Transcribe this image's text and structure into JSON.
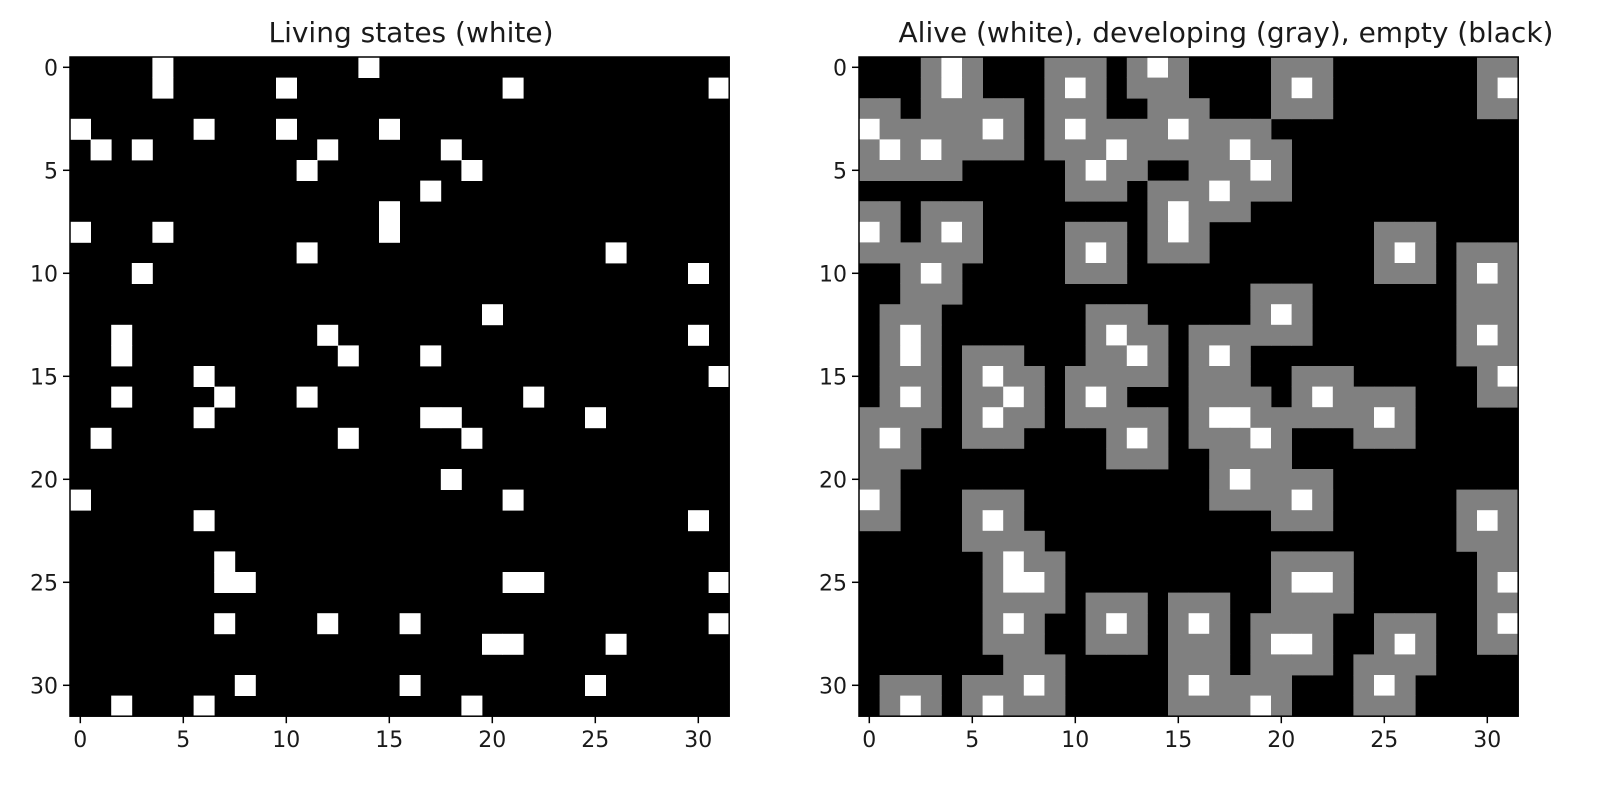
{
  "chart_data": [
    {
      "type": "heatmap",
      "title": "Living states (white)",
      "xlabel": "",
      "ylabel": "",
      "grid": false,
      "xlim": [
        -0.5,
        31.5
      ],
      "ylim": [
        31.5,
        -0.5
      ],
      "xticks": [
        0,
        5,
        10,
        15,
        20,
        25,
        30
      ],
      "yticks": [
        0,
        5,
        10,
        15,
        20,
        25,
        30
      ],
      "colors": {
        "alive": "#ffffff",
        "empty": "#000000"
      },
      "alive_cells": [
        [
          0,
          4
        ],
        [
          0,
          14
        ],
        [
          1,
          4
        ],
        [
          1,
          10
        ],
        [
          1,
          21
        ],
        [
          1,
          31
        ],
        [
          3,
          0
        ],
        [
          3,
          6
        ],
        [
          3,
          10
        ],
        [
          3,
          15
        ],
        [
          4,
          1
        ],
        [
          4,
          3
        ],
        [
          4,
          12
        ],
        [
          4,
          18
        ],
        [
          5,
          11
        ],
        [
          5,
          19
        ],
        [
          6,
          17
        ],
        [
          7,
          15
        ],
        [
          8,
          0
        ],
        [
          8,
          4
        ],
        [
          8,
          15
        ],
        [
          9,
          11
        ],
        [
          9,
          26
        ],
        [
          10,
          3
        ],
        [
          10,
          30
        ],
        [
          12,
          20
        ],
        [
          13,
          2
        ],
        [
          13,
          12
        ],
        [
          13,
          30
        ],
        [
          14,
          2
        ],
        [
          14,
          13
        ],
        [
          14,
          17
        ],
        [
          15,
          6
        ],
        [
          15,
          31
        ],
        [
          16,
          2
        ],
        [
          16,
          7
        ],
        [
          16,
          11
        ],
        [
          16,
          22
        ],
        [
          17,
          6
        ],
        [
          17,
          17
        ],
        [
          17,
          18
        ],
        [
          17,
          25
        ],
        [
          18,
          1
        ],
        [
          18,
          13
        ],
        [
          18,
          19
        ],
        [
          20,
          18
        ],
        [
          21,
          0
        ],
        [
          21,
          21
        ],
        [
          22,
          6
        ],
        [
          22,
          30
        ],
        [
          24,
          7
        ],
        [
          25,
          7
        ],
        [
          25,
          8
        ],
        [
          25,
          21
        ],
        [
          25,
          22
        ],
        [
          25,
          31
        ],
        [
          27,
          7
        ],
        [
          27,
          12
        ],
        [
          27,
          16
        ],
        [
          27,
          31
        ],
        [
          28,
          20
        ],
        [
          28,
          21
        ],
        [
          28,
          26
        ],
        [
          30,
          8
        ],
        [
          30,
          16
        ],
        [
          30,
          25
        ],
        [
          31,
          2
        ],
        [
          31,
          6
        ],
        [
          31,
          19
        ]
      ]
    },
    {
      "type": "heatmap",
      "title": "Alive (white), developing (gray), empty (black)",
      "xlabel": "",
      "ylabel": "",
      "grid": false,
      "xlim": [
        -0.5,
        31.5
      ],
      "ylim": [
        31.5,
        -0.5
      ],
      "xticks": [
        0,
        5,
        10,
        15,
        20,
        25,
        30
      ],
      "yticks": [
        0,
        5,
        10,
        15,
        20,
        25,
        30
      ],
      "colors": {
        "alive": "#ffffff",
        "developing": "#808080",
        "empty": "#000000"
      },
      "alive_cells": "same as first panel",
      "developing_rule": "every cell within one step (8-neighbourhood) of an alive cell that is not itself alive"
    }
  ]
}
